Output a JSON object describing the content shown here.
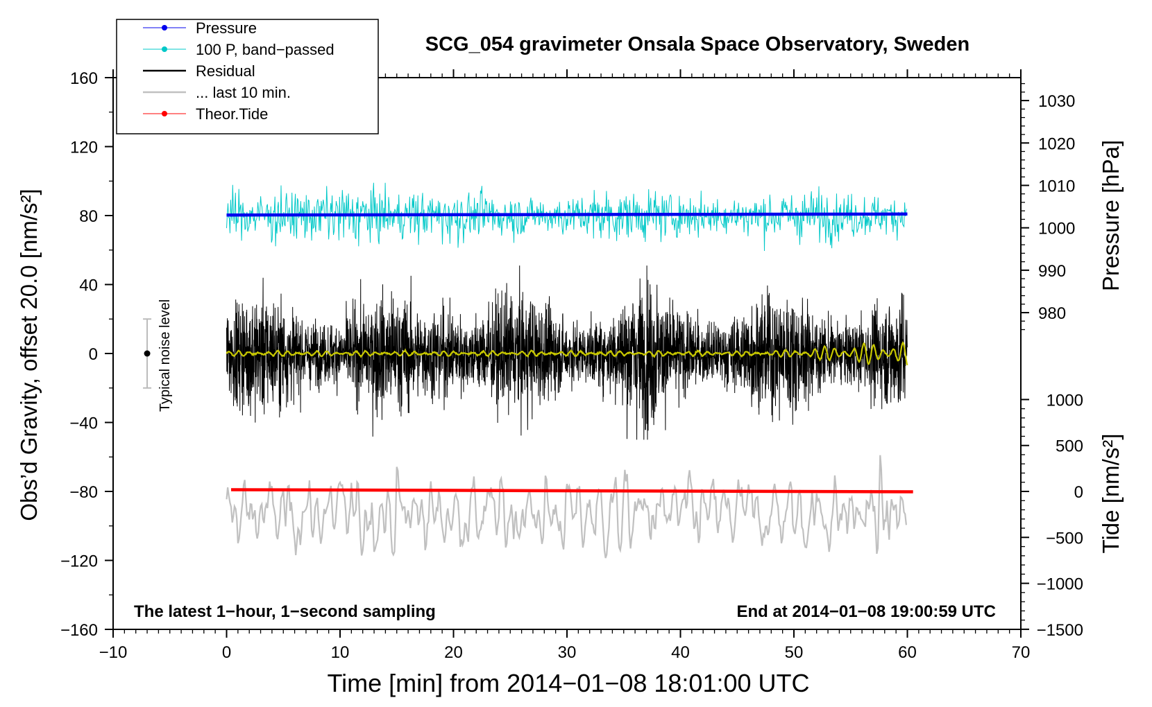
{
  "chart_data": {
    "type": "line",
    "title": "SCG_054 gravimeter Onsala Space Observatory, Sweden",
    "xlabel": "Time [min] from 2014−01−08 18:01:00 UTC",
    "ylabel_left": "Obs’d Gravity, offset 20.0 [nm/s²]",
    "ylabel_right_pressure": "Pressure [hPa]",
    "ylabel_right_tide": "Tide [nm/s²]",
    "xlim": [
      -10,
      70
    ],
    "ylim": [
      -160,
      160
    ],
    "x_ticks": [
      "−10",
      "0",
      "10",
      "20",
      "30",
      "40",
      "50",
      "60",
      "70"
    ],
    "x_tick_values": [
      -10,
      0,
      10,
      20,
      30,
      40,
      50,
      60,
      70
    ],
    "y_ticks": [
      "160",
      "120",
      "80",
      "40",
      "0",
      "−40",
      "−80",
      "−120",
      "−160"
    ],
    "y_tick_values": [
      160,
      120,
      80,
      40,
      0,
      -40,
      -80,
      -120,
      -160
    ],
    "pressure_ticks": [
      "1030",
      "1020",
      "1010",
      "1000",
      "990",
      "980"
    ],
    "pressure_tick_values": [
      1030,
      1020,
      1010,
      1000,
      990,
      980
    ],
    "pressure_axis_gravity_equiv": {
      "hPa_1000": 72.9,
      "per_hPa": 2.46
    },
    "tide_ticks": [
      "1000",
      "500",
      "0",
      "−500",
      "−1000",
      "−1500"
    ],
    "tide_tick_values": [
      1000,
      500,
      0,
      -500,
      -1000,
      -1500
    ],
    "tide_axis_gravity_equiv": {
      "tide_0": -80,
      "per_1000": 53.3
    },
    "legend": [
      {
        "label": "Pressure",
        "color": "#0000ee",
        "marker": true
      },
      {
        "label": "100 P, band−passed",
        "color": "#00c8c8",
        "marker": true
      },
      {
        "label": "Residual",
        "color": "#000000",
        "marker": false
      },
      {
        "label": "... last 10 min.",
        "color": "#c0c0c0",
        "marker": false
      },
      {
        "label": "Theor.Tide",
        "color": "#ff0000",
        "marker": true
      }
    ],
    "series": [
      {
        "name": "Pressure",
        "color": "#0000ee",
        "x_range": [
          0,
          60
        ],
        "y_start": 80.3,
        "y_end": 80.9
      },
      {
        "name": "100 P, band−passed",
        "color": "#00c8c8",
        "x_range": [
          0,
          60
        ],
        "center": 80,
        "amplitude": 9,
        "peak_max": 99,
        "peak_min": 54
      },
      {
        "name": "Residual",
        "color": "#000000",
        "x_range": [
          0,
          60
        ],
        "center": 0,
        "amplitude": 18,
        "peak_max": 51,
        "peak_min": -50
      },
      {
        "name": "Residual, smoothed",
        "color": "#c8c800",
        "x_range": [
          0,
          60
        ],
        "center": 0,
        "amplitude": 1.5,
        "late_amplitude": 7
      },
      {
        "name": "... last 10 min.",
        "color": "#c0c0c0",
        "x_range": [
          0,
          60
        ],
        "center": -93,
        "amplitude": 18,
        "peak_max": -56,
        "peak_min": -147
      },
      {
        "name": "Theor.Tide",
        "color": "#ff0000",
        "x_range": [
          0.4,
          60.5
        ],
        "y_start": -79.0,
        "y_end": -80.2
      }
    ],
    "noise_bar": {
      "label": "Typical noise level",
      "x": -7,
      "center": 0,
      "half_range": 20
    },
    "annotations": {
      "bottom_left": "The latest 1−hour, 1−second sampling",
      "bottom_right": "End at 2014−01−08 19:00:59 UTC"
    }
  }
}
